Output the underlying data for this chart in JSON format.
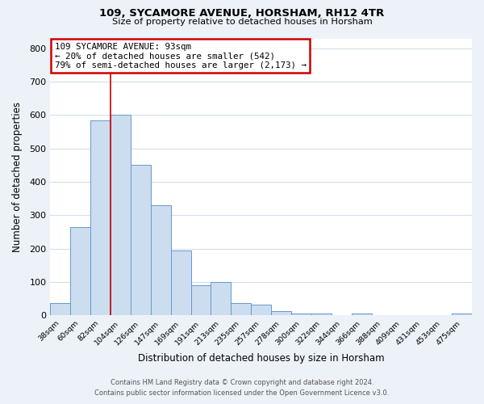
{
  "title": "109, SYCAMORE AVENUE, HORSHAM, RH12 4TR",
  "subtitle": "Size of property relative to detached houses in Horsham",
  "xlabel": "Distribution of detached houses by size in Horsham",
  "ylabel": "Number of detached properties",
  "bar_color": "#ccddf0",
  "bar_edge_color": "#6699cc",
  "bin_labels": [
    "38sqm",
    "60sqm",
    "82sqm",
    "104sqm",
    "126sqm",
    "147sqm",
    "169sqm",
    "191sqm",
    "213sqm",
    "235sqm",
    "257sqm",
    "278sqm",
    "300sqm",
    "322sqm",
    "344sqm",
    "366sqm",
    "388sqm",
    "409sqm",
    "431sqm",
    "453sqm",
    "475sqm"
  ],
  "bar_heights": [
    38,
    265,
    585,
    600,
    450,
    330,
    195,
    90,
    100,
    38,
    33,
    12,
    5,
    5,
    0,
    5,
    0,
    0,
    0,
    0,
    5
  ],
  "ylim": [
    0,
    830
  ],
  "yticks": [
    0,
    100,
    200,
    300,
    400,
    500,
    600,
    700,
    800
  ],
  "vline_position": 2.5,
  "annotation_title": "109 SYCAMORE AVENUE: 93sqm",
  "annotation_line1": "← 20% of detached houses are smaller (542)",
  "annotation_line2": "79% of semi-detached houses are larger (2,173) →",
  "annotation_box_color": "#ffffff",
  "annotation_box_edge": "#cc0000",
  "vline_color": "#cc0000",
  "footer1": "Contains HM Land Registry data © Crown copyright and database right 2024.",
  "footer2": "Contains public sector information licensed under the Open Government Licence v3.0.",
  "bg_color": "#edf2f9",
  "plot_bg_color": "#ffffff",
  "grid_color": "#c8d4e8"
}
